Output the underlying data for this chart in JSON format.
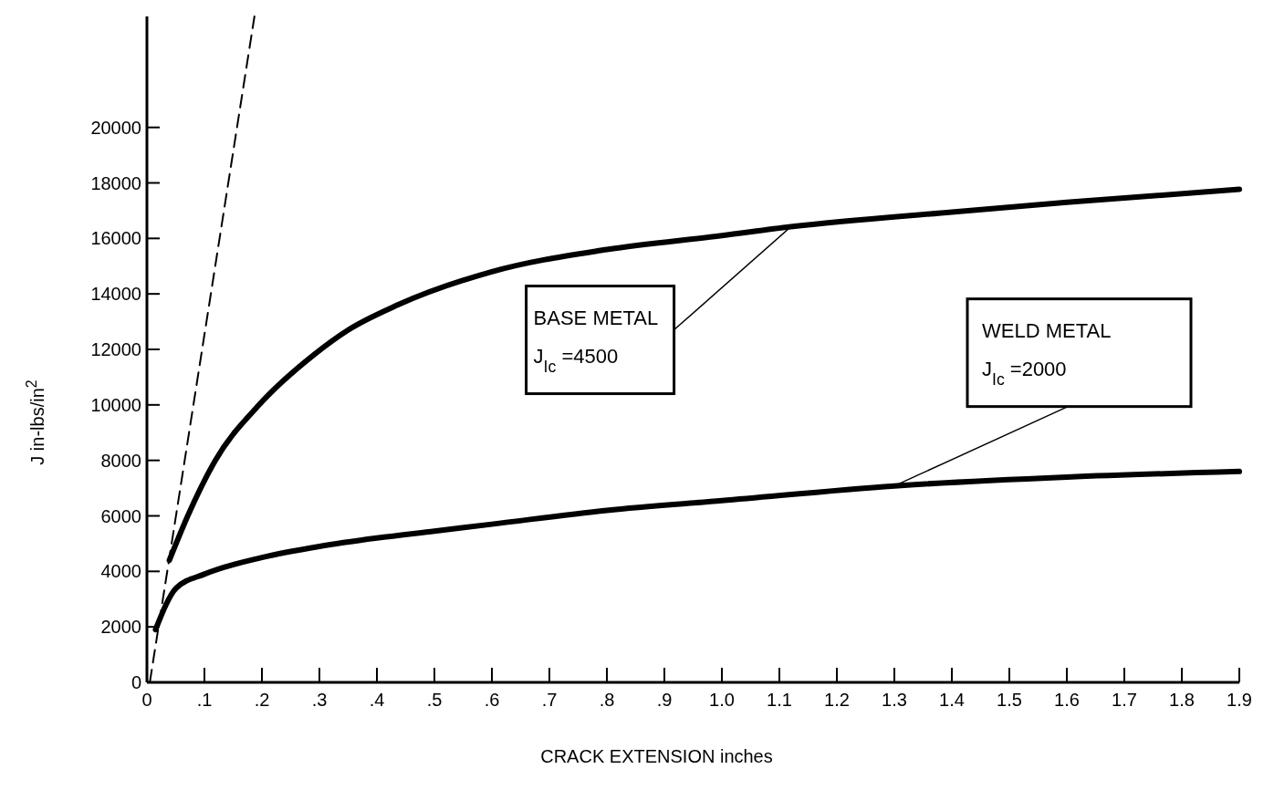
{
  "chart_data": {
    "type": "line",
    "xlabel": "CRACK EXTENSION inches",
    "ylabel": "J  in-lbs/in$^{2}$",
    "xlim": [
      0,
      1.9
    ],
    "ylim": [
      0,
      24000
    ],
    "xticks": [
      0,
      {
        "value": 0.1,
        "label": ".1"
      },
      {
        "value": 0.2,
        "label": ".2"
      },
      {
        "value": 0.3,
        "label": ".3"
      },
      {
        "value": 0.4,
        "label": ".4"
      },
      {
        "value": 0.5,
        "label": ".5"
      },
      {
        "value": 0.6,
        "label": ".6"
      },
      {
        "value": 0.7,
        "label": ".7"
      },
      {
        "value": 0.8,
        "label": ".8"
      },
      {
        "value": 0.9,
        "label": ".9"
      },
      {
        "value": 1,
        "label": "1.0"
      },
      1.1,
      1.2,
      1.3,
      1.4,
      1.5,
      1.6,
      1.7,
      1.8,
      1.9
    ],
    "yticks": [
      0,
      2000,
      4000,
      6000,
      8000,
      10000,
      12000,
      14000,
      16000,
      18000,
      20000
    ],
    "grid": false,
    "marker": "none",
    "series": [
      {
        "color": "#000000",
        "line_style": "solid",
        "x": [
          0.039,
          0.071,
          0.119,
          0.195,
          0.29,
          0.35,
          0.436,
          0.6,
          0.8,
          1.0,
          1.12,
          1.4,
          1.6,
          1.9
        ],
        "values": [
          4400,
          6000,
          8000,
          10000,
          11800,
          12700,
          13600,
          14800,
          15600,
          16100,
          16420,
          16950,
          17300,
          17770
        ]
      },
      {
        "color": "#000000",
        "line_style": "solid",
        "x": [
          0.015,
          0.051,
          0.1,
          0.2,
          0.3,
          0.4,
          0.5,
          0.6,
          0.8,
          1.0,
          1.3,
          1.6,
          1.9
        ],
        "values": [
          1900,
          3400,
          3900,
          4500,
          4900,
          5200,
          5450,
          5700,
          6200,
          6550,
          7080,
          7400,
          7600
        ]
      },
      {
        "color": "#000000",
        "line_style": "dashed",
        "x": [
          0.005,
          0.187
        ],
        "values": [
          0,
          24000
        ]
      }
    ],
    "annotations": [
      {
        "text": "BASE METAL\nJ$_{Ic}$ =4500",
        "x": 1.12,
        "y": 16420
      },
      {
        "text": "WELD METAL\nJ$_{Ic}$ =2000",
        "x": 1.3,
        "y": 7080
      }
    ]
  }
}
